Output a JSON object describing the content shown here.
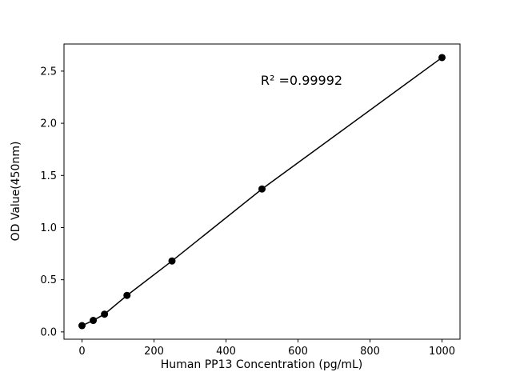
{
  "figure": {
    "background_color": "#ffffff"
  },
  "chart_data": {
    "type": "scatter",
    "title": "",
    "xlabel": "Human PP13 Concentration (pg/mL)",
    "ylabel": "OD Value(450nm)",
    "x": [
      0,
      31.25,
      62.5,
      125,
      250,
      500,
      1000
    ],
    "y": [
      0.06,
      0.11,
      0.17,
      0.35,
      0.68,
      1.37,
      2.63
    ],
    "line": true,
    "line_color": "#000000",
    "line_width": 1.5,
    "marker": "circle",
    "marker_color": "#000000",
    "marker_radius": 4.5,
    "xlim": [
      -50,
      1050
    ],
    "ylim": [
      -0.07,
      2.76
    ],
    "xticks": [
      0,
      200,
      400,
      600,
      800,
      1000
    ],
    "xtick_labels": [
      "0",
      "200",
      "400",
      "600",
      "800",
      "1000"
    ],
    "yticks": [
      0.0,
      0.5,
      1.0,
      1.5,
      2.0,
      2.5
    ],
    "ytick_labels": [
      "0.0",
      "0.5",
      "1.0",
      "1.5",
      "2.0",
      "2.5"
    ],
    "grid": false,
    "legend": false,
    "annotation": {
      "text": "R² =0.99992",
      "x": 610,
      "y": 2.37
    }
  }
}
